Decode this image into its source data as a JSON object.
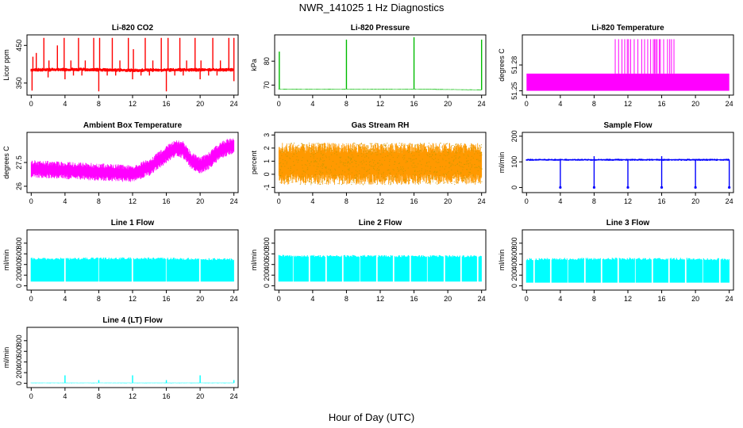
{
  "figure": {
    "title": "NWR_141025  1 Hz Diagnostics",
    "xlabel": "Hour of Day (UTC)"
  },
  "chart_data": [
    {
      "type": "line",
      "title": "Li-820 CO2",
      "ylabel": "Licor ppm",
      "color": "#ff0000",
      "xlim": [
        -0.5,
        24.5
      ],
      "ylim": [
        318,
        478
      ],
      "xticks": [
        0,
        4,
        8,
        12,
        16,
        20,
        24
      ],
      "yticks": [
        350,
        450
      ],
      "baseline": [
        {
          "x": 0,
          "y": 385
        },
        {
          "x": 6,
          "y": 386
        },
        {
          "x": 12,
          "y": 384
        },
        {
          "x": 18,
          "y": 385
        },
        {
          "x": 24,
          "y": 385
        }
      ],
      "band": 5,
      "spikes_up": [
        {
          "x": 0.2,
          "y": 420
        },
        {
          "x": 0.6,
          "y": 430
        },
        {
          "x": 1.5,
          "y": 470
        },
        {
          "x": 2.1,
          "y": 410
        },
        {
          "x": 3.1,
          "y": 450
        },
        {
          "x": 3.9,
          "y": 470
        },
        {
          "x": 4.7,
          "y": 410
        },
        {
          "x": 5.6,
          "y": 470
        },
        {
          "x": 6.4,
          "y": 410
        },
        {
          "x": 7.4,
          "y": 470
        },
        {
          "x": 8.1,
          "y": 470
        },
        {
          "x": 9.6,
          "y": 470
        },
        {
          "x": 10.5,
          "y": 410
        },
        {
          "x": 11.5,
          "y": 470
        },
        {
          "x": 12.1,
          "y": 440
        },
        {
          "x": 13.5,
          "y": 470
        },
        {
          "x": 14.4,
          "y": 410
        },
        {
          "x": 15.4,
          "y": 470
        },
        {
          "x": 16.2,
          "y": 470
        },
        {
          "x": 17.6,
          "y": 470
        },
        {
          "x": 18.4,
          "y": 410
        },
        {
          "x": 19.4,
          "y": 470
        },
        {
          "x": 20.1,
          "y": 410
        },
        {
          "x": 21.5,
          "y": 470
        },
        {
          "x": 22.4,
          "y": 410
        },
        {
          "x": 23.4,
          "y": 470
        },
        {
          "x": 24.0,
          "y": 470
        }
      ],
      "spikes_down": [
        {
          "x": 0.1,
          "y": 330
        },
        {
          "x": 2.0,
          "y": 365
        },
        {
          "x": 4.0,
          "y": 360
        },
        {
          "x": 5.0,
          "y": 370
        },
        {
          "x": 6.0,
          "y": 370
        },
        {
          "x": 8.0,
          "y": 328
        },
        {
          "x": 9.0,
          "y": 370
        },
        {
          "x": 10.0,
          "y": 370
        },
        {
          "x": 12.0,
          "y": 360
        },
        {
          "x": 13.0,
          "y": 370
        },
        {
          "x": 14.0,
          "y": 370
        },
        {
          "x": 16.0,
          "y": 328
        },
        {
          "x": 17.0,
          "y": 370
        },
        {
          "x": 18.0,
          "y": 370
        },
        {
          "x": 20.0,
          "y": 360
        },
        {
          "x": 21.0,
          "y": 370
        },
        {
          "x": 22.0,
          "y": 370
        },
        {
          "x": 24.0,
          "y": 355
        }
      ]
    },
    {
      "type": "line",
      "title": "Li-820 Pressure",
      "ylabel": "kPa",
      "color": "#00bb00",
      "xlim": [
        -0.5,
        24.5
      ],
      "ylim": [
        65.8,
        91
      ],
      "xticks": [
        0,
        4,
        8,
        12,
        16,
        20,
        24
      ],
      "yticks": [
        70,
        80
      ],
      "baseline": [
        {
          "x": 0,
          "y": 68.3
        },
        {
          "x": 8,
          "y": 68.3
        },
        {
          "x": 16,
          "y": 68.3
        },
        {
          "x": 23.9,
          "y": 68.0
        }
      ],
      "band": 0.15,
      "spikes_up": [
        {
          "x": 0.05,
          "y": 84
        },
        {
          "x": 8.0,
          "y": 89
        },
        {
          "x": 16.0,
          "y": 90
        },
        {
          "x": 24.0,
          "y": 89
        }
      ],
      "spikes_down": []
    },
    {
      "type": "line",
      "title": "Li-820 Temperature",
      "ylabel": "degrees C",
      "color": "#ff00ff",
      "xlim": [
        -0.5,
        24.5
      ],
      "ylim": [
        51.245,
        51.315
      ],
      "xticks": [
        0,
        4,
        8,
        12,
        16,
        20,
        24
      ],
      "yticks": [
        51.25,
        51.28
      ],
      "fill_range": [
        51.25,
        51.27
      ],
      "spike_range": [
        10.5,
        17.6
      ],
      "spike_top": 51.31
    },
    {
      "type": "line",
      "title": "Ambient Box Temperature",
      "ylabel": "degrees C",
      "color": "#ff00ff",
      "xlim": [
        -0.5,
        24.5
      ],
      "ylim": [
        25.6,
        29.4
      ],
      "xticks": [
        0,
        4,
        8,
        12,
        16,
        20,
        24
      ],
      "yticks": [
        26.0,
        27.5
      ],
      "center": [
        {
          "x": 0,
          "y": 27.1
        },
        {
          "x": 4,
          "y": 27.0
        },
        {
          "x": 8,
          "y": 26.9
        },
        {
          "x": 12,
          "y": 26.8
        },
        {
          "x": 14,
          "y": 27.2
        },
        {
          "x": 16,
          "y": 28.0
        },
        {
          "x": 17,
          "y": 28.4
        },
        {
          "x": 18,
          "y": 28.3
        },
        {
          "x": 19,
          "y": 27.6
        },
        {
          "x": 20,
          "y": 27.3
        },
        {
          "x": 21,
          "y": 27.6
        },
        {
          "x": 22.5,
          "y": 28.3
        },
        {
          "x": 24,
          "y": 28.6
        }
      ],
      "noise": 0.5
    },
    {
      "type": "scatter",
      "title": "Gas Stream RH",
      "ylabel": "percent",
      "color": "#ff9900",
      "point_color": "#cc9900",
      "xlim": [
        -0.5,
        24.5
      ],
      "ylim": [
        -1.4,
        3.2
      ],
      "xticks": [
        0,
        4,
        8,
        12,
        16,
        20,
        24
      ],
      "yticks": [
        -1,
        0,
        1,
        2,
        3
      ],
      "y_range": [
        -0.8,
        2.4
      ]
    },
    {
      "type": "line",
      "title": "Sample Flow",
      "ylabel": "ml/min",
      "color": "#0000ff",
      "xlim": [
        -0.5,
        24.5
      ],
      "ylim": [
        -20,
        215
      ],
      "xticks": [
        0,
        4,
        8,
        12,
        16,
        20,
        24
      ],
      "yticks": [
        0,
        100,
        200
      ],
      "baseline": [
        {
          "x": 0,
          "y": 108
        },
        {
          "x": 24,
          "y": 108
        }
      ],
      "band": 4,
      "spikes_up": [
        {
          "x": 8.0,
          "y": 122
        },
        {
          "x": 16.0,
          "y": 122
        }
      ],
      "spikes_down": [
        {
          "x": 4.0,
          "y": 0
        },
        {
          "x": 8.0,
          "y": 0
        },
        {
          "x": 12.0,
          "y": 0
        },
        {
          "x": 16.0,
          "y": 0
        },
        {
          "x": 20.0,
          "y": 0
        },
        {
          "x": 24.0,
          "y": 0
        }
      ],
      "drop_points": true
    },
    {
      "type": "area",
      "title": "Line 1 Flow",
      "ylabel": "ml/min",
      "color": "#00ffff",
      "xlim": [
        -0.5,
        24.5
      ],
      "ylim": [
        -80,
        1050
      ],
      "xticks": [
        0,
        4,
        8,
        12,
        16,
        20,
        24
      ],
      "yticks": [
        0,
        200,
        400,
        600,
        800
      ],
      "low": 80,
      "high": [
        {
          "x": 0,
          "y": 505
        },
        {
          "x": 12,
          "y": 515
        },
        {
          "x": 24,
          "y": 495
        }
      ],
      "gaps": [
        4,
        8,
        12,
        16,
        20
      ]
    },
    {
      "type": "area",
      "title": "Line 2 Flow",
      "ylabel": "ml/min",
      "color": "#00ffff",
      "xlim": [
        -0.5,
        24.5
      ],
      "ylim": [
        -80,
        1050
      ],
      "xticks": [
        0,
        4,
        8,
        12,
        16,
        20,
        24
      ],
      "yticks": [
        0,
        200,
        400,
        600,
        800
      ],
      "low": 80,
      "high": [
        {
          "x": 0,
          "y": 560
        },
        {
          "x": 24,
          "y": 555
        }
      ],
      "gaps": [
        1.7,
        3.6,
        5.6,
        7.6,
        9.6,
        11.6,
        13.6,
        15.6,
        17.6,
        19.6,
        21.6,
        23.6
      ]
    },
    {
      "type": "area",
      "title": "Line 3 Flow",
      "ylabel": "ml/min",
      "color": "#00ffff",
      "xlim": [
        -0.5,
        24.5
      ],
      "ylim": [
        -80,
        1050
      ],
      "xticks": [
        0,
        4,
        8,
        12,
        16,
        20,
        24
      ],
      "yticks": [
        0,
        200,
        400,
        600,
        800
      ],
      "low": 60,
      "high": [
        {
          "x": 0,
          "y": 500
        },
        {
          "x": 12,
          "y": 510
        },
        {
          "x": 24,
          "y": 500
        }
      ],
      "gaps": [
        0.9,
        2.9,
        4.9,
        6.9,
        8.9,
        10.9,
        12.9,
        14.9,
        16.9,
        18.9,
        20.9,
        22.9
      ]
    },
    {
      "type": "line",
      "title": "Line 4 (LT) Flow",
      "ylabel": "ml/min",
      "color": "#00ffff",
      "xlim": [
        -0.5,
        24.5
      ],
      "ylim": [
        -80,
        1050
      ],
      "xticks": [
        0,
        4,
        8,
        12,
        16,
        20,
        24
      ],
      "yticks": [
        0,
        200,
        400,
        600,
        800
      ],
      "baseline": [
        {
          "x": 0,
          "y": 8
        },
        {
          "x": 24,
          "y": 8
        }
      ],
      "band": 6,
      "spikes_up": [
        {
          "x": 4.0,
          "y": 150
        },
        {
          "x": 8.0,
          "y": 60
        },
        {
          "x": 12.0,
          "y": 150
        },
        {
          "x": 16.0,
          "y": 60
        },
        {
          "x": 20.0,
          "y": 150
        },
        {
          "x": 24.0,
          "y": 60
        }
      ],
      "spikes_down": []
    }
  ]
}
